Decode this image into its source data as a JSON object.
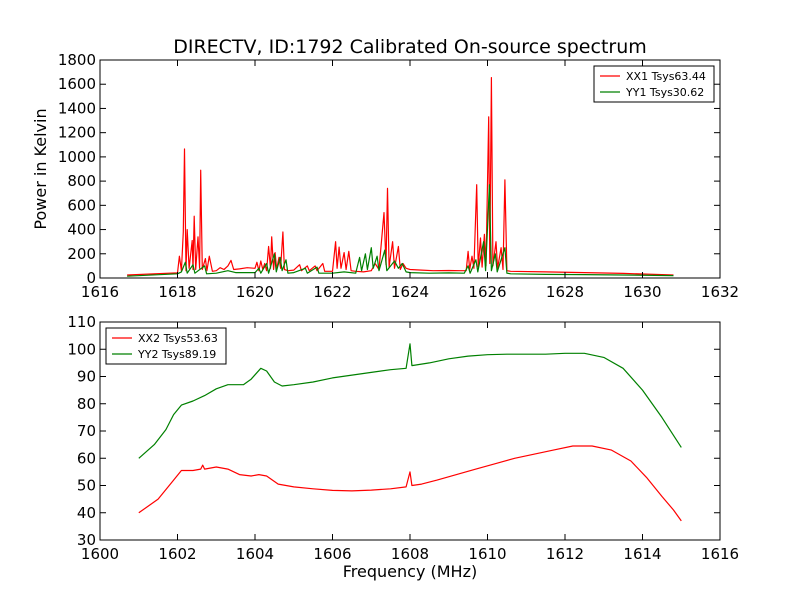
{
  "chart_data": [
    {
      "type": "line",
      "title": "DIRECTV, ID:1792 Calibrated On-source spectrum",
      "xlabel": "",
      "ylabel": "Power in Kelvin",
      "xlim": [
        1616,
        1632
      ],
      "ylim": [
        0,
        1800
      ],
      "xticks": [
        1616,
        1618,
        1620,
        1622,
        1624,
        1626,
        1628,
        1630,
        1632
      ],
      "yticks": [
        0,
        200,
        400,
        600,
        800,
        1000,
        1200,
        1400,
        1600,
        1800
      ],
      "grid": false,
      "legend_position": "top-right",
      "series": [
        {
          "name": "XX1 Tsys63.44",
          "color": "#ff0000",
          "points": [
            [
              1616.7,
              25
            ],
            [
              1618.0,
              42
            ],
            [
              1618.05,
              180
            ],
            [
              1618.1,
              60
            ],
            [
              1618.15,
              380
            ],
            [
              1618.18,
              1065
            ],
            [
              1618.22,
              60
            ],
            [
              1618.25,
              400
            ],
            [
              1618.3,
              80
            ],
            [
              1618.38,
              310
            ],
            [
              1618.4,
              70
            ],
            [
              1618.43,
              510
            ],
            [
              1618.47,
              70
            ],
            [
              1618.53,
              340
            ],
            [
              1618.57,
              80
            ],
            [
              1618.6,
              890
            ],
            [
              1618.64,
              70
            ],
            [
              1618.72,
              160
            ],
            [
              1618.76,
              60
            ],
            [
              1618.82,
              180
            ],
            [
              1618.9,
              55
            ],
            [
              1619.0,
              60
            ],
            [
              1619.1,
              85
            ],
            [
              1619.2,
              70
            ],
            [
              1619.3,
              100
            ],
            [
              1619.38,
              145
            ],
            [
              1619.45,
              70
            ],
            [
              1619.6,
              75
            ],
            [
              1619.8,
              85
            ],
            [
              1620.0,
              80
            ],
            [
              1620.05,
              130
            ],
            [
              1620.1,
              60
            ],
            [
              1620.15,
              140
            ],
            [
              1620.2,
              70
            ],
            [
              1620.25,
              120
            ],
            [
              1620.3,
              60
            ],
            [
              1620.35,
              260
            ],
            [
              1620.4,
              80
            ],
            [
              1620.43,
              340
            ],
            [
              1620.48,
              70
            ],
            [
              1620.52,
              210
            ],
            [
              1620.56,
              70
            ],
            [
              1620.62,
              170
            ],
            [
              1620.66,
              80
            ],
            [
              1620.72,
              380
            ],
            [
              1620.76,
              70
            ],
            [
              1620.85,
              60
            ],
            [
              1621.0,
              65
            ],
            [
              1621.15,
              110
            ],
            [
              1621.2,
              60
            ],
            [
              1621.35,
              100
            ],
            [
              1621.4,
              60
            ],
            [
              1621.55,
              100
            ],
            [
              1621.6,
              60
            ],
            [
              1621.75,
              120
            ],
            [
              1621.8,
              55
            ],
            [
              1622.0,
              55
            ],
            [
              1622.08,
              300
            ],
            [
              1622.12,
              80
            ],
            [
              1622.17,
              255
            ],
            [
              1622.22,
              80
            ],
            [
              1622.3,
              210
            ],
            [
              1622.35,
              70
            ],
            [
              1622.42,
              220
            ],
            [
              1622.48,
              60
            ],
            [
              1622.6,
              55
            ],
            [
              1622.8,
              50
            ],
            [
              1623.0,
              60
            ],
            [
              1623.1,
              120
            ],
            [
              1623.2,
              70
            ],
            [
              1623.33,
              540
            ],
            [
              1623.38,
              110
            ],
            [
              1623.42,
              740
            ],
            [
              1623.46,
              90
            ],
            [
              1623.55,
              300
            ],
            [
              1623.6,
              80
            ],
            [
              1623.7,
              260
            ],
            [
              1623.75,
              70
            ],
            [
              1623.82,
              120
            ],
            [
              1623.9,
              80
            ],
            [
              1624.0,
              70
            ],
            [
              1624.3,
              65
            ],
            [
              1624.6,
              60
            ],
            [
              1625.0,
              62
            ],
            [
              1625.3,
              60
            ],
            [
              1625.45,
              60
            ],
            [
              1625.5,
              220
            ],
            [
              1625.54,
              70
            ],
            [
              1625.6,
              180
            ],
            [
              1625.65,
              80
            ],
            [
              1625.72,
              770
            ],
            [
              1625.76,
              90
            ],
            [
              1625.82,
              330
            ],
            [
              1625.86,
              90
            ],
            [
              1625.92,
              360
            ],
            [
              1625.96,
              100
            ],
            [
              1626.03,
              1330
            ],
            [
              1626.06,
              120
            ],
            [
              1626.1,
              1655
            ],
            [
              1626.14,
              100
            ],
            [
              1626.22,
              300
            ],
            [
              1626.26,
              80
            ],
            [
              1626.35,
              250
            ],
            [
              1626.4,
              70
            ],
            [
              1626.45,
              810
            ],
            [
              1626.5,
              60
            ],
            [
              1626.6,
              55
            ],
            [
              1627.5,
              50
            ],
            [
              1628.5,
              45
            ],
            [
              1629.5,
              38
            ],
            [
              1630.8,
              25
            ]
          ]
        },
        {
          "name": "YY1 Tsys30.62",
          "color": "#008000",
          "points": [
            [
              1616.7,
              15
            ],
            [
              1618.0,
              35
            ],
            [
              1618.1,
              50
            ],
            [
              1618.2,
              130
            ],
            [
              1618.25,
              40
            ],
            [
              1618.4,
              110
            ],
            [
              1618.45,
              40
            ],
            [
              1618.7,
              100
            ],
            [
              1618.75,
              35
            ],
            [
              1619.0,
              40
            ],
            [
              1619.3,
              60
            ],
            [
              1619.5,
              45
            ],
            [
              1620.0,
              45
            ],
            [
              1620.1,
              80
            ],
            [
              1620.15,
              40
            ],
            [
              1620.3,
              120
            ],
            [
              1620.35,
              40
            ],
            [
              1620.5,
              200
            ],
            [
              1620.55,
              50
            ],
            [
              1620.65,
              170
            ],
            [
              1620.7,
              60
            ],
            [
              1620.8,
              150
            ],
            [
              1620.85,
              40
            ],
            [
              1621.0,
              45
            ],
            [
              1621.3,
              80
            ],
            [
              1621.35,
              40
            ],
            [
              1621.6,
              90
            ],
            [
              1621.65,
              40
            ],
            [
              1622.0,
              40
            ],
            [
              1622.3,
              50
            ],
            [
              1622.6,
              40
            ],
            [
              1622.7,
              170
            ],
            [
              1622.75,
              60
            ],
            [
              1622.85,
              200
            ],
            [
              1622.9,
              70
            ],
            [
              1623.0,
              250
            ],
            [
              1623.05,
              80
            ],
            [
              1623.15,
              180
            ],
            [
              1623.2,
              60
            ],
            [
              1623.35,
              230
            ],
            [
              1623.4,
              60
            ],
            [
              1623.6,
              140
            ],
            [
              1623.7,
              80
            ],
            [
              1623.8,
              120
            ],
            [
              1623.9,
              50
            ],
            [
              1624.0,
              45
            ],
            [
              1624.5,
              40
            ],
            [
              1625.0,
              42
            ],
            [
              1625.4,
              40
            ],
            [
              1625.5,
              100
            ],
            [
              1625.55,
              40
            ],
            [
              1625.7,
              150
            ],
            [
              1625.75,
              50
            ],
            [
              1625.9,
              300
            ],
            [
              1625.95,
              60
            ],
            [
              1626.05,
              770
            ],
            [
              1626.1,
              60
            ],
            [
              1626.2,
              200
            ],
            [
              1626.25,
              50
            ],
            [
              1626.45,
              250
            ],
            [
              1626.5,
              40
            ],
            [
              1626.6,
              35
            ],
            [
              1627.5,
              30
            ],
            [
              1628.5,
              28
            ],
            [
              1629.5,
              25
            ],
            [
              1630.8,
              20
            ]
          ]
        }
      ]
    },
    {
      "type": "line",
      "title": "",
      "xlabel": "Frequency (MHz)",
      "ylabel": "",
      "xlim": [
        1600,
        1616
      ],
      "ylim": [
        30,
        110
      ],
      "xticks": [
        1600,
        1602,
        1604,
        1606,
        1608,
        1610,
        1612,
        1614,
        1616
      ],
      "yticks": [
        30,
        40,
        50,
        60,
        70,
        80,
        90,
        100,
        110
      ],
      "grid": false,
      "legend_position": "top-left",
      "series": [
        {
          "name": "XX2 Tsys53.63",
          "color": "#ff0000",
          "points": [
            [
              1601.0,
              40
            ],
            [
              1601.5,
              45
            ],
            [
              1601.9,
              52
            ],
            [
              1602.1,
              55.5
            ],
            [
              1602.4,
              55.5
            ],
            [
              1602.6,
              56
            ],
            [
              1602.65,
              57.5
            ],
            [
              1602.7,
              56
            ],
            [
              1603.0,
              56.8
            ],
            [
              1603.3,
              56
            ],
            [
              1603.6,
              54
            ],
            [
              1603.9,
              53.5
            ],
            [
              1604.1,
              54
            ],
            [
              1604.3,
              53.5
            ],
            [
              1604.6,
              50.5
            ],
            [
              1605.0,
              49.5
            ],
            [
              1605.5,
              48.8
            ],
            [
              1606.0,
              48.2
            ],
            [
              1606.5,
              48
            ],
            [
              1607.0,
              48.3
            ],
            [
              1607.5,
              48.8
            ],
            [
              1607.9,
              49.5
            ],
            [
              1608.0,
              55
            ],
            [
              1608.05,
              50
            ],
            [
              1608.3,
              50.5
            ],
            [
              1608.7,
              52
            ],
            [
              1609.2,
              54
            ],
            [
              1609.7,
              56
            ],
            [
              1610.2,
              58
            ],
            [
              1610.7,
              60
            ],
            [
              1611.2,
              61.5
            ],
            [
              1611.7,
              63
            ],
            [
              1612.2,
              64.5
            ],
            [
              1612.7,
              64.5
            ],
            [
              1613.2,
              63
            ],
            [
              1613.7,
              59
            ],
            [
              1614.1,
              53
            ],
            [
              1614.5,
              46
            ],
            [
              1614.8,
              41
            ],
            [
              1615.0,
              37
            ]
          ]
        },
        {
          "name": "YY2 Tsys89.19",
          "color": "#008000",
          "points": [
            [
              1601.0,
              60
            ],
            [
              1601.4,
              65
            ],
            [
              1601.7,
              70.5
            ],
            [
              1601.9,
              76
            ],
            [
              1602.1,
              79.5
            ],
            [
              1602.4,
              81
            ],
            [
              1602.7,
              83
            ],
            [
              1603.0,
              85.5
            ],
            [
              1603.3,
              87
            ],
            [
              1603.7,
              87
            ],
            [
              1603.9,
              89
            ],
            [
              1604.15,
              93
            ],
            [
              1604.3,
              92
            ],
            [
              1604.5,
              88
            ],
            [
              1604.7,
              86.5
            ],
            [
              1605.0,
              87
            ],
            [
              1605.5,
              88
            ],
            [
              1606.0,
              89.5
            ],
            [
              1606.5,
              90.5
            ],
            [
              1607.0,
              91.5
            ],
            [
              1607.5,
              92.5
            ],
            [
              1607.9,
              93
            ],
            [
              1608.0,
              102
            ],
            [
              1608.05,
              94
            ],
            [
              1608.5,
              95
            ],
            [
              1609.0,
              96.5
            ],
            [
              1609.5,
              97.5
            ],
            [
              1610.0,
              98
            ],
            [
              1610.5,
              98.2
            ],
            [
              1611.0,
              98.2
            ],
            [
              1611.5,
              98.2
            ],
            [
              1612.0,
              98.5
            ],
            [
              1612.5,
              98.5
            ],
            [
              1613.0,
              97
            ],
            [
              1613.5,
              93
            ],
            [
              1614.0,
              85
            ],
            [
              1614.5,
              75
            ],
            [
              1615.0,
              64
            ]
          ]
        }
      ]
    }
  ]
}
